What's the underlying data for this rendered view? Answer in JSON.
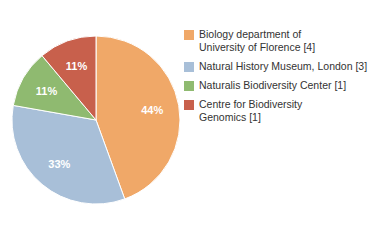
{
  "chart_data": {
    "type": "pie",
    "categories": [
      "Biology department of\nUniversity of Florence [4]",
      "Natural History Museum, London [3]",
      "Naturalis Biodiversity Center [1]",
      "Centre for Biodiversity\nGenomics [1]"
    ],
    "values": [
      44,
      33,
      11,
      11
    ],
    "value_labels": [
      "44%",
      "33%",
      "11%",
      "11%"
    ],
    "colors": [
      "#f0a868",
      "#a8bfd8",
      "#8fba70",
      "#c8604c"
    ],
    "data_labels": true,
    "legend": "right"
  }
}
